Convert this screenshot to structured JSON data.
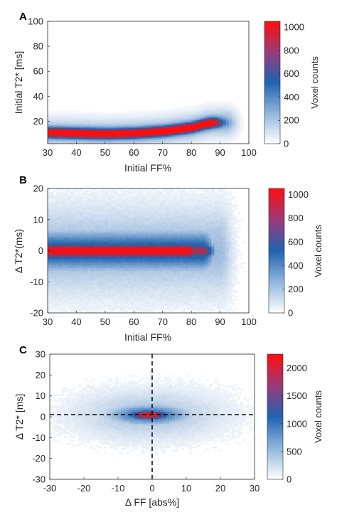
{
  "colors": {
    "low": "#ffffff",
    "mid": "#1f63b0",
    "high": "#ff0d0d",
    "axis": "#262626"
  },
  "chart_data": [
    {
      "type": "heatmap",
      "panel": "A",
      "xlabel": "Initial FF%",
      "ylabel": "Initial T2* [ms]",
      "xlim": [
        30,
        100
      ],
      "ylim": [
        2,
        100
      ],
      "xticks": [
        30,
        40,
        50,
        60,
        70,
        80,
        90,
        100
      ],
      "yticks": [
        20,
        40,
        60,
        80,
        100
      ],
      "colorbar": {
        "label": "Voxel counts",
        "range": [
          0,
          1050
        ],
        "ticks": [
          0,
          200,
          400,
          600,
          800,
          1000
        ]
      },
      "ridge": {
        "x_range": [
          30,
          88
        ],
        "y_at_x": [
          [
            30,
            11
          ],
          [
            40,
            10.5
          ],
          [
            50,
            10
          ],
          [
            60,
            10.5
          ],
          [
            70,
            12
          ],
          [
            80,
            15
          ],
          [
            85,
            18
          ],
          [
            88,
            19
          ]
        ],
        "peak_count": 1000
      },
      "grid": false
    },
    {
      "type": "heatmap",
      "panel": "B",
      "xlabel": "Initial FF%",
      "ylabel": "Δ T2*(ms)",
      "xlim": [
        30,
        100
      ],
      "ylim": [
        -20,
        20
      ],
      "xticks": [
        30,
        40,
        50,
        60,
        70,
        80,
        90,
        100
      ],
      "yticks": [
        -20,
        -10,
        0,
        10,
        20
      ],
      "colorbar": {
        "label": "Voxel counts",
        "range": [
          0,
          1050
        ],
        "ticks": [
          0,
          200,
          400,
          600,
          800,
          1000
        ]
      },
      "ridge": {
        "x_range": [
          30,
          88
        ],
        "y_center": 0,
        "peak_count": 1000
      },
      "grid": false
    },
    {
      "type": "heatmap",
      "panel": "C",
      "xlabel": "Δ FF [abs%]",
      "ylabel": "Δ T2* [ms]",
      "xlim": [
        -30,
        30
      ],
      "ylim": [
        -30,
        30
      ],
      "xticks": [
        -30,
        -20,
        -10,
        0,
        10,
        20,
        30
      ],
      "yticks": [
        -30,
        -20,
        -10,
        0,
        10,
        20,
        30
      ],
      "colorbar": {
        "label": "Voxel counts",
        "range": [
          0,
          2250
        ],
        "ticks": [
          0,
          500,
          1000,
          1500,
          2000
        ]
      },
      "center": {
        "x": -1,
        "y": 1,
        "peak_count": 2200
      },
      "reference_lines": {
        "x": 0,
        "y": 1
      },
      "grid": false
    }
  ]
}
